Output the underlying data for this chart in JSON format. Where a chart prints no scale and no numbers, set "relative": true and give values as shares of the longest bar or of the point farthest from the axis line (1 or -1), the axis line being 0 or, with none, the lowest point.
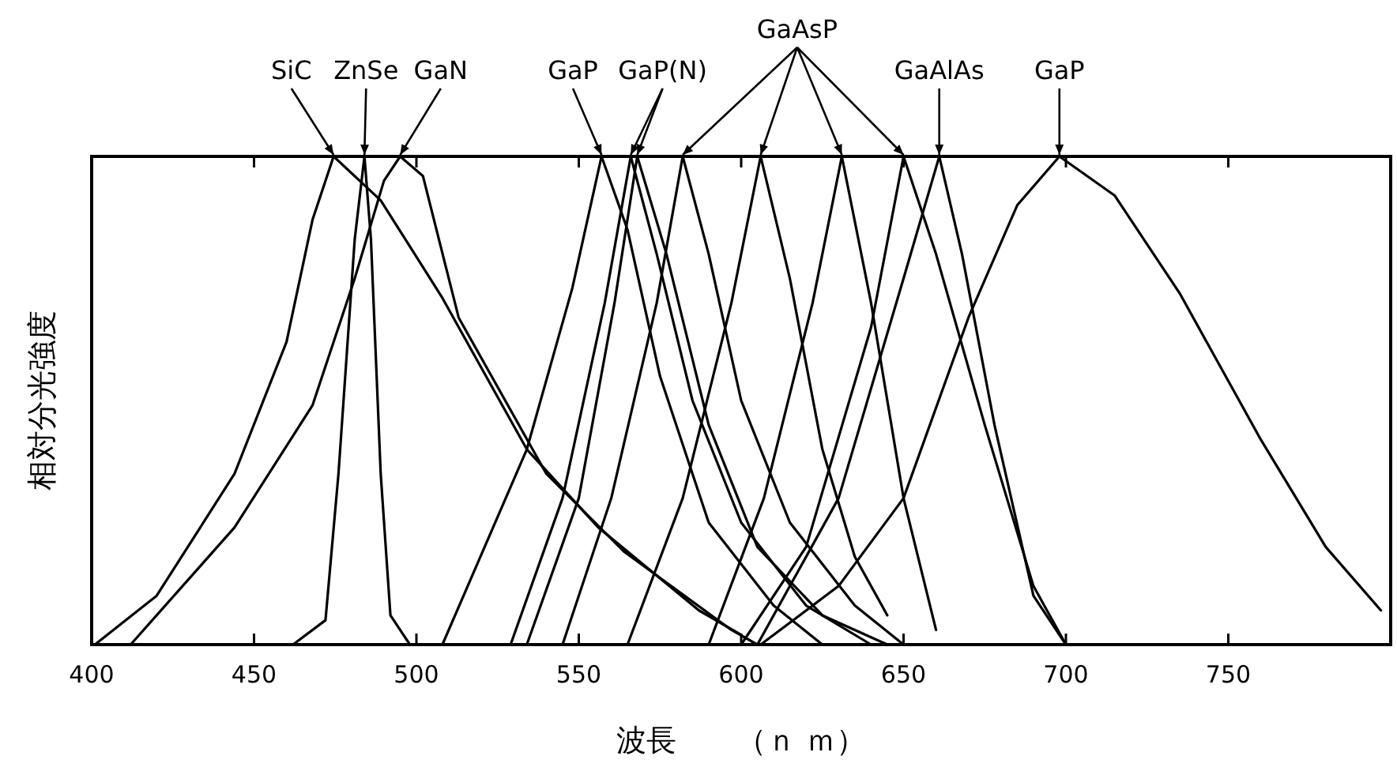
{
  "chart_data": {
    "type": "line",
    "relative": true,
    "xlabel": "波長　　（ｎ ｍ）",
    "ylabel": "相対分光強度",
    "xlim": [
      400,
      800
    ],
    "xticks": [
      400,
      450,
      500,
      550,
      600,
      650,
      700,
      750
    ],
    "marker": "none",
    "line_style": "solid",
    "series": [
      {
        "name": "SiC",
        "color": "#000000",
        "x": [
          401,
          420,
          444,
          460,
          468,
          474.5,
          489,
          508,
          534,
          556,
          587,
          600
        ],
        "values": [
          0,
          0.1,
          0.35,
          0.62,
          0.87,
          1,
          0.91,
          0.71,
          0.4,
          0.24,
          0.07,
          0.02
        ]
      },
      {
        "name": "ZnSe",
        "color": "#000000",
        "x": [
          462,
          472,
          476,
          481,
          484,
          486,
          489,
          492,
          498
        ],
        "values": [
          0,
          0.05,
          0.35,
          0.83,
          1,
          0.83,
          0.35,
          0.06,
          0
        ]
      },
      {
        "name": "GaN",
        "color": "#000000",
        "x": [
          412,
          444,
          468,
          481,
          490,
          495,
          502,
          513,
          540,
          564,
          597,
          605
        ],
        "values": [
          0,
          0.24,
          0.49,
          0.75,
          0.95,
          1,
          0.96,
          0.67,
          0.35,
          0.19,
          0.03,
          0
        ]
      },
      {
        "name": "GaP",
        "color": "#000000",
        "x": [
          508,
          534,
          548,
          557,
          565,
          575,
          590,
          610,
          625
        ],
        "values": [
          0,
          0.4,
          0.73,
          1,
          0.85,
          0.55,
          0.25,
          0.08,
          0
        ]
      },
      {
        "name": "GaP(N)",
        "color": "#000000",
        "x": [
          529,
          545,
          558,
          566,
          574,
          585,
          600,
          620,
          640
        ],
        "values": [
          0,
          0.3,
          0.7,
          1,
          0.8,
          0.5,
          0.25,
          0.08,
          0
        ]
      },
      {
        "color": "#000000",
        "x": [
          534,
          550,
          561,
          568,
          577,
          590,
          605,
          625,
          645
        ],
        "values": [
          0,
          0.3,
          0.7,
          1,
          0.8,
          0.45,
          0.2,
          0.06,
          0
        ]
      },
      {
        "name": "GaAsP",
        "color": "#000000",
        "x": [
          545,
          560,
          574,
          582,
          590,
          600,
          615,
          635,
          650
        ],
        "values": [
          0,
          0.3,
          0.7,
          1,
          0.8,
          0.5,
          0.25,
          0.08,
          0
        ]
      },
      {
        "color": "#000000",
        "x": [
          565,
          582,
          597,
          606,
          615,
          625,
          635,
          645
        ],
        "values": [
          0,
          0.3,
          0.7,
          1,
          0.75,
          0.4,
          0.18,
          0.06
        ]
      },
      {
        "color": "#000000",
        "x": [
          590,
          607,
          622,
          631,
          640,
          650,
          660
        ],
        "values": [
          0,
          0.3,
          0.7,
          1,
          0.7,
          0.3,
          0.03
        ]
      },
      {
        "color": "#000000",
        "x": [
          600,
          620,
          640,
          650,
          660,
          675,
          690,
          700
        ],
        "values": [
          0,
          0.2,
          0.65,
          1,
          0.8,
          0.45,
          0.12,
          0
        ]
      },
      {
        "name": "GaAlAs",
        "color": "#000000",
        "x": [
          605,
          630,
          650,
          661,
          668,
          678,
          690,
          700
        ],
        "values": [
          0,
          0.3,
          0.75,
          1,
          0.8,
          0.45,
          0.1,
          0
        ]
      },
      {
        "name": "GaP",
        "color": "#000000",
        "x": [
          606,
          630,
          650,
          670,
          685,
          698,
          715,
          735,
          760,
          780,
          797
        ],
        "values": [
          0,
          0.12,
          0.3,
          0.67,
          0.9,
          1,
          0.92,
          0.72,
          0.42,
          0.2,
          0.07
        ]
      }
    ]
  }
}
